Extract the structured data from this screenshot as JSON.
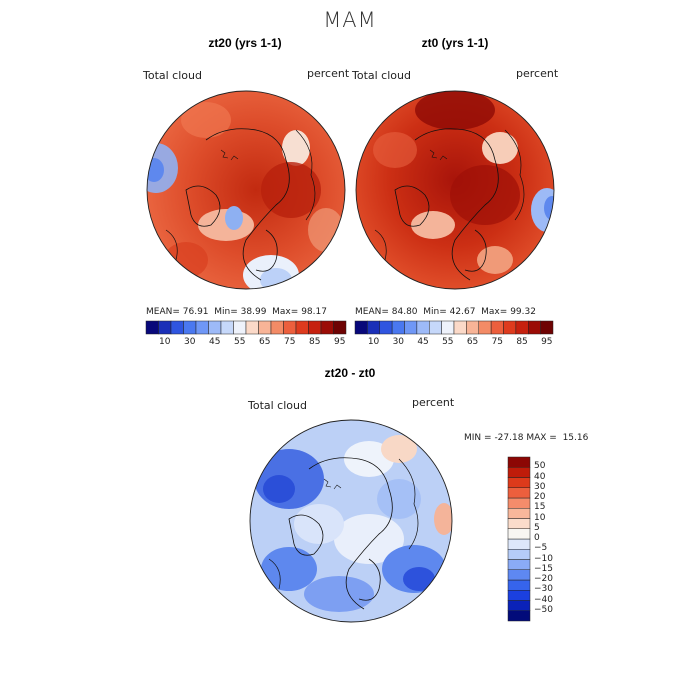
{
  "figure": {
    "title": "MAM",
    "panels": [
      {
        "title": "zt20 (yrs 1-1)",
        "variable_label": "Total cloud",
        "units_label": "percent",
        "stats": {
          "mean": "76.91",
          "min": "38.99",
          "max": "98.17"
        }
      },
      {
        "title": "zt0 (yrs 1-1)",
        "variable_label": "Total cloud",
        "units_label": "percent",
        "stats": {
          "mean": "84.80",
          "min": "42.67",
          "max": "99.32"
        }
      },
      {
        "title": "zt20 - zt0",
        "variable_label": "Total cloud",
        "units_label": "percent",
        "stats": {
          "min": "-27.18",
          "max": "15.16"
        }
      }
    ],
    "stat_labels": {
      "mean": "MEAN=",
      "min": "Min=",
      "max": "Max=",
      "min_upper": "MIN =",
      "max_upper": "MAX ="
    }
  },
  "abs_colorbar": {
    "colors": [
      "#08087a",
      "#1a2fb8",
      "#2f55e0",
      "#4a78f0",
      "#6f97f6",
      "#9dbaf8",
      "#c6d8fa",
      "#eef2fb",
      "#fbd9c8",
      "#f8b497",
      "#f38b66",
      "#ec5f3d",
      "#de3b1e",
      "#c6210f",
      "#9b0c06",
      "#6e0303"
    ],
    "tick_labels": [
      "10",
      "30",
      "45",
      "55",
      "65",
      "75",
      "85",
      "95"
    ]
  },
  "diff_colorbar": {
    "colors": [
      "#020b7a",
      "#0a22b8",
      "#1b40e0",
      "#3664ec",
      "#5e88f2",
      "#8aabf6",
      "#b5ccf8",
      "#dde7fa",
      "#f8f6f2",
      "#fbdccb",
      "#f8b79b",
      "#f48c6b",
      "#ec5f3d",
      "#dd3a1b",
      "#bf1c0a",
      "#8c0704"
    ],
    "tick_labels": [
      "50",
      "40",
      "30",
      "20",
      "15",
      "10",
      "5",
      "0",
      "−5",
      "−10",
      "−15",
      "−20",
      "−30",
      "−40",
      "−50"
    ]
  }
}
